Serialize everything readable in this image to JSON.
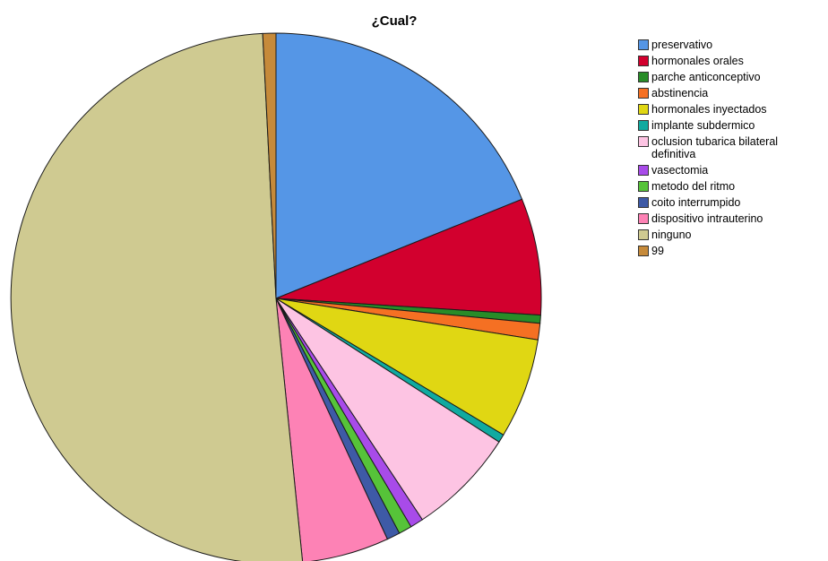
{
  "chart_data": {
    "type": "pie",
    "title": "¿Cual?",
    "legend_position": "right",
    "start_angle_deg": 0,
    "direction": "clockwise",
    "slices": [
      {
        "label": "preservativo",
        "value": 18.9,
        "color": "#5596e6"
      },
      {
        "label": "hormonales orales",
        "value": 7.1,
        "color": "#d2002e"
      },
      {
        "label": "parche anticonceptivo",
        "value": 0.5,
        "color": "#288c28"
      },
      {
        "label": "abstinencia",
        "value": 1.0,
        "color": "#f57023"
      },
      {
        "label": "hormonales inyectados",
        "value": 6.1,
        "color": "#e0d713"
      },
      {
        "label": "implante subdermico",
        "value": 0.5,
        "color": "#10aaa0"
      },
      {
        "label": "oclusion tubarica bilateral\ndefinitiva",
        "value": 6.6,
        "color": "#fdc4e3"
      },
      {
        "label": "vasectomia",
        "value": 0.8,
        "color": "#a84be9"
      },
      {
        "label": "metodo del ritmo",
        "value": 0.8,
        "color": "#56c339"
      },
      {
        "label": "coito interrumpido",
        "value": 0.8,
        "color": "#3e5aa6"
      },
      {
        "label": "dispositivo intrauterino",
        "value": 5.3,
        "color": "#fd82b5"
      },
      {
        "label": "ninguno",
        "value": 50.8,
        "color": "#cfca91"
      },
      {
        "label": "99",
        "value": 0.8,
        "color": "#c68a3a"
      }
    ]
  }
}
